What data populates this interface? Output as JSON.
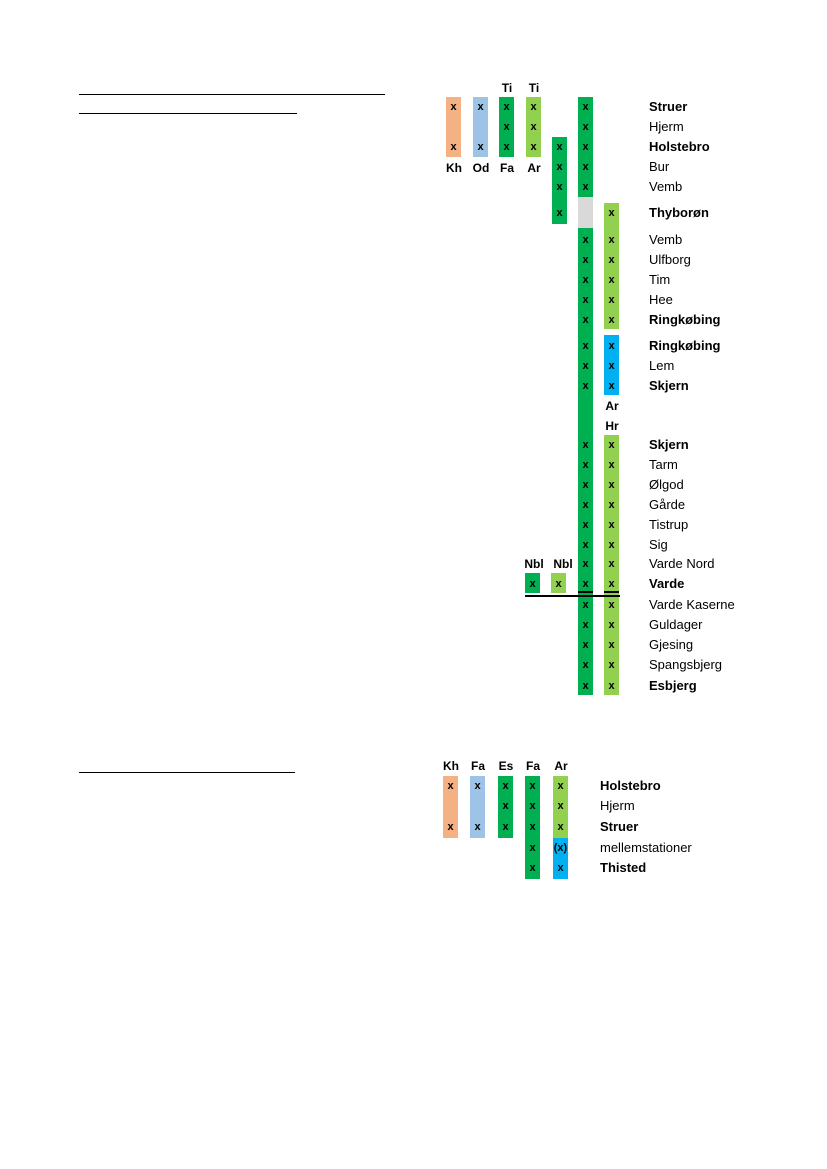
{
  "colors": {
    "orange": "#f4b183",
    "lightblue": "#9dc3e6",
    "darkgreen": "#00b050",
    "lightgreen": "#92d050",
    "blue": "#00b0f0",
    "grey": "#d9d9d9"
  },
  "diagram1": {
    "column_headers_top": [
      "Ti",
      "Ti"
    ],
    "column_headers_bottom": [
      "Kh",
      "Od",
      "Fa",
      "Ar"
    ],
    "mark": "x",
    "ar_label": "Ar",
    "hr_label": "Hr",
    "nbl_labels": [
      "Nbl",
      "Nbl"
    ],
    "stations": [
      {
        "name": "Struer",
        "bold": true
      },
      {
        "name": "Hjerm",
        "bold": false
      },
      {
        "name": "Holstebro",
        "bold": true
      },
      {
        "name": "Bur",
        "bold": false
      },
      {
        "name": "Vemb",
        "bold": false
      },
      {
        "name": "Thyborøn",
        "bold": true
      },
      {
        "name": "Vemb",
        "bold": false
      },
      {
        "name": "Ulfborg",
        "bold": false
      },
      {
        "name": "Tim",
        "bold": false
      },
      {
        "name": "Hee",
        "bold": false
      },
      {
        "name": "Ringkøbing",
        "bold": true
      },
      {
        "name": "Ringkøbing",
        "bold": true
      },
      {
        "name": "Lem",
        "bold": false
      },
      {
        "name": "Skjern",
        "bold": true
      },
      {
        "name": "Skjern",
        "bold": true
      },
      {
        "name": "Tarm",
        "bold": false
      },
      {
        "name": "Ølgod",
        "bold": false
      },
      {
        "name": "Gårde",
        "bold": false
      },
      {
        "name": "Tistrup",
        "bold": false
      },
      {
        "name": "Sig",
        "bold": false
      },
      {
        "name": "Varde Nord",
        "bold": false
      },
      {
        "name": "Varde",
        "bold": true
      },
      {
        "name": "Varde Kaserne",
        "bold": false
      },
      {
        "name": "Guldager",
        "bold": false
      },
      {
        "name": "Gjesing",
        "bold": false
      },
      {
        "name": "Spangsbjerg",
        "bold": false
      },
      {
        "name": "Esbjerg",
        "bold": true
      }
    ]
  },
  "diagram2": {
    "column_headers": [
      "Kh",
      "Fa",
      "Es",
      "Fa",
      "Ar"
    ],
    "mark": "x",
    "paren_mark": "(x)",
    "stations": [
      {
        "name": "Holstebro",
        "bold": true
      },
      {
        "name": "Hjerm",
        "bold": false
      },
      {
        "name": "Struer",
        "bold": true
      },
      {
        "name": "mellemstationer",
        "bold": false
      },
      {
        "name": "Thisted",
        "bold": true
      }
    ]
  }
}
